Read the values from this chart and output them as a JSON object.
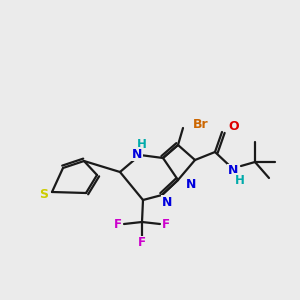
{
  "bg_color": "#ebebeb",
  "bond_color": "#1a1a1a",
  "atom_colors": {
    "S": "#cccc00",
    "N": "#0000dd",
    "O": "#dd0000",
    "Br": "#cc6600",
    "F": "#cc00cc",
    "NH": "#00aaaa",
    "C": "#1a1a1a"
  },
  "lw": 1.6
}
